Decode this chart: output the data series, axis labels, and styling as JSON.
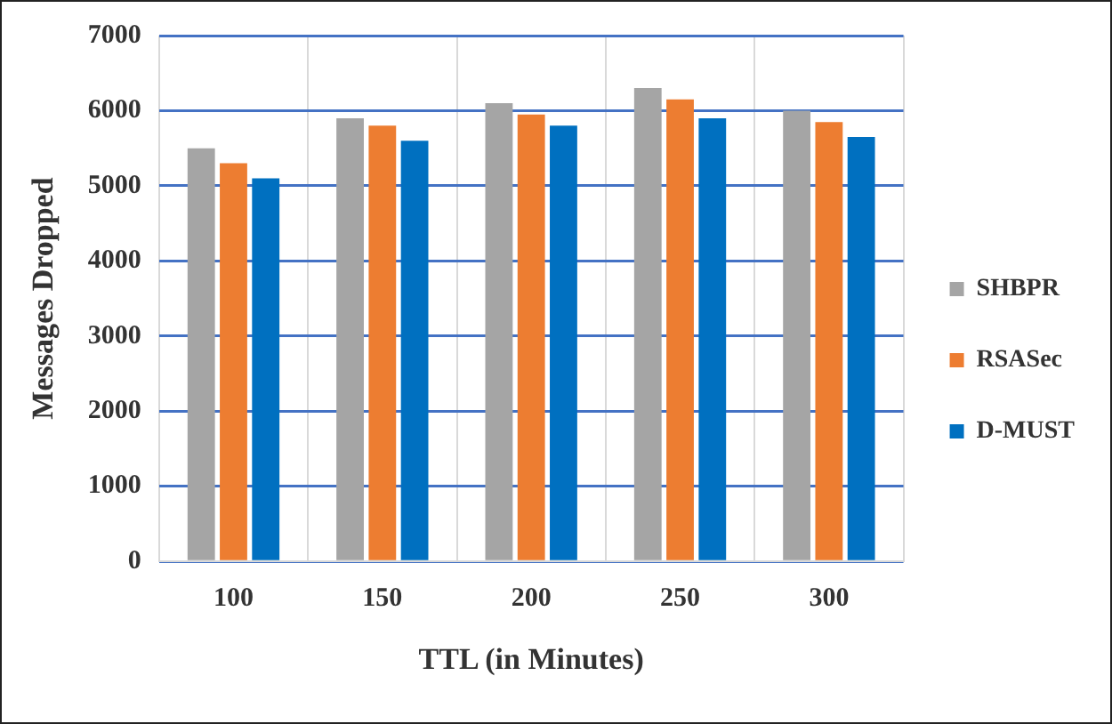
{
  "chart_data": {
    "type": "bar",
    "xlabel": "TTL (in Minutes)",
    "ylabel": "Messages Dropped",
    "categories": [
      "100",
      "150",
      "200",
      "250",
      "300"
    ],
    "series": [
      {
        "name": "SHBPR",
        "color": "#a5a5a5",
        "values": [
          5500,
          5900,
          6100,
          6300,
          6000
        ]
      },
      {
        "name": "RSASec",
        "color": "#ed7d31",
        "values": [
          5300,
          5800,
          5950,
          6150,
          5850
        ]
      },
      {
        "name": "D-MUST",
        "color": "#0070c0",
        "values": [
          5100,
          5600,
          5800,
          5900,
          5650
        ]
      }
    ],
    "ylim": [
      0,
      7000
    ],
    "yticks": [
      0,
      1000,
      2000,
      3000,
      4000,
      5000,
      6000,
      7000
    ],
    "grid": true,
    "legend": "right"
  }
}
